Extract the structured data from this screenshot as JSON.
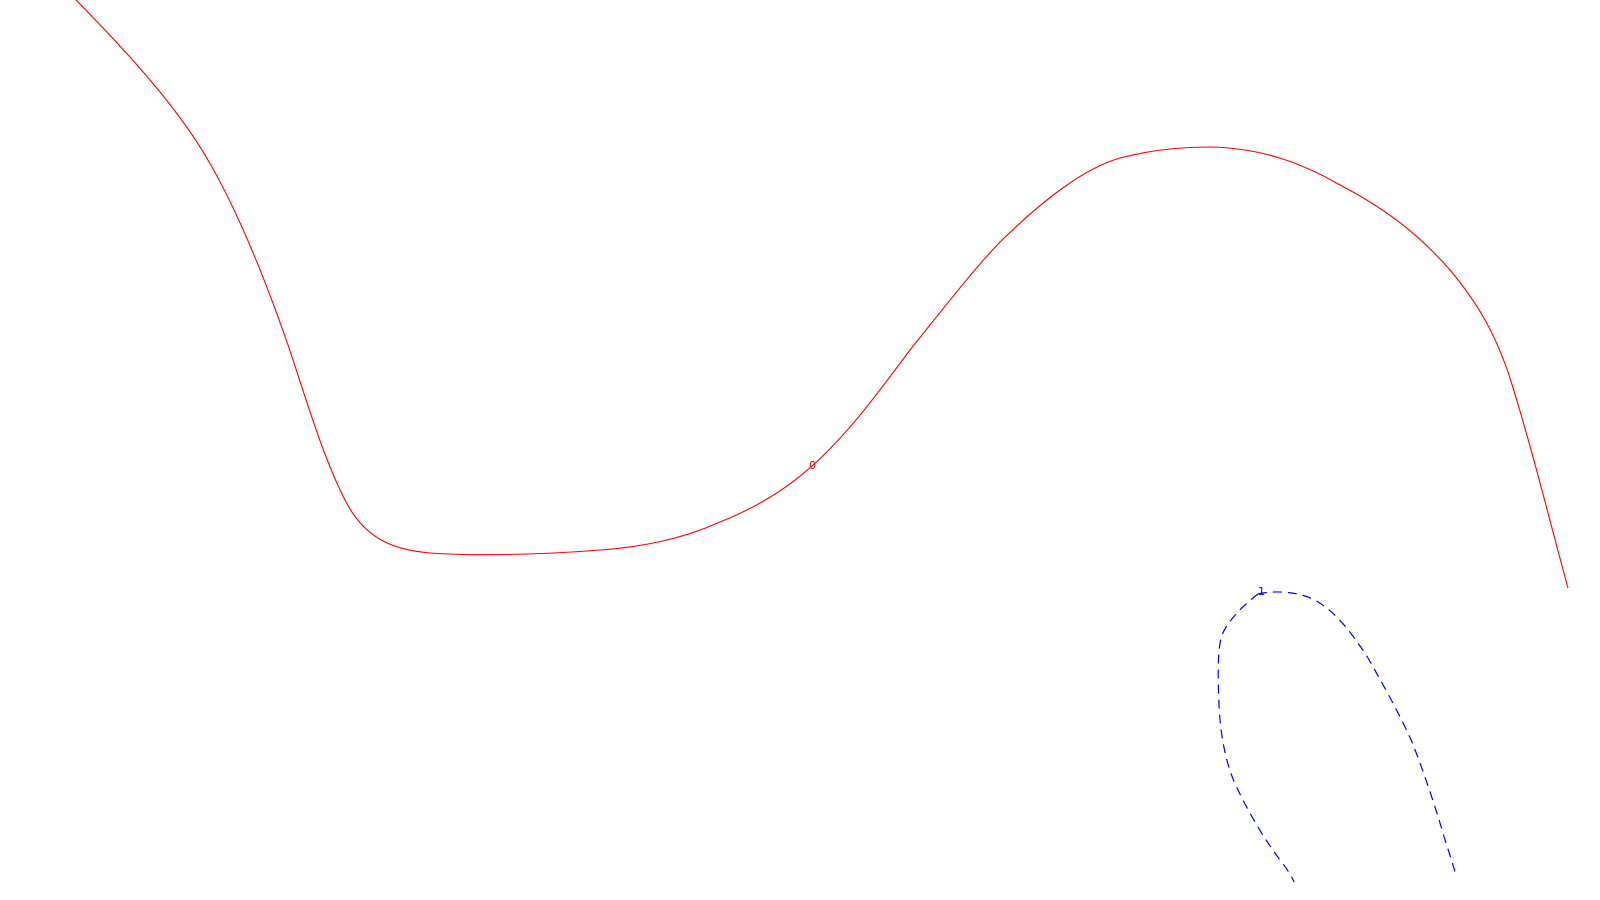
{
  "contours": [
    {
      "label": "0",
      "color": "#ff0000",
      "style": "solid"
    },
    {
      "label": "1",
      "color": "#0000ff",
      "style": "dashed"
    }
  ]
}
